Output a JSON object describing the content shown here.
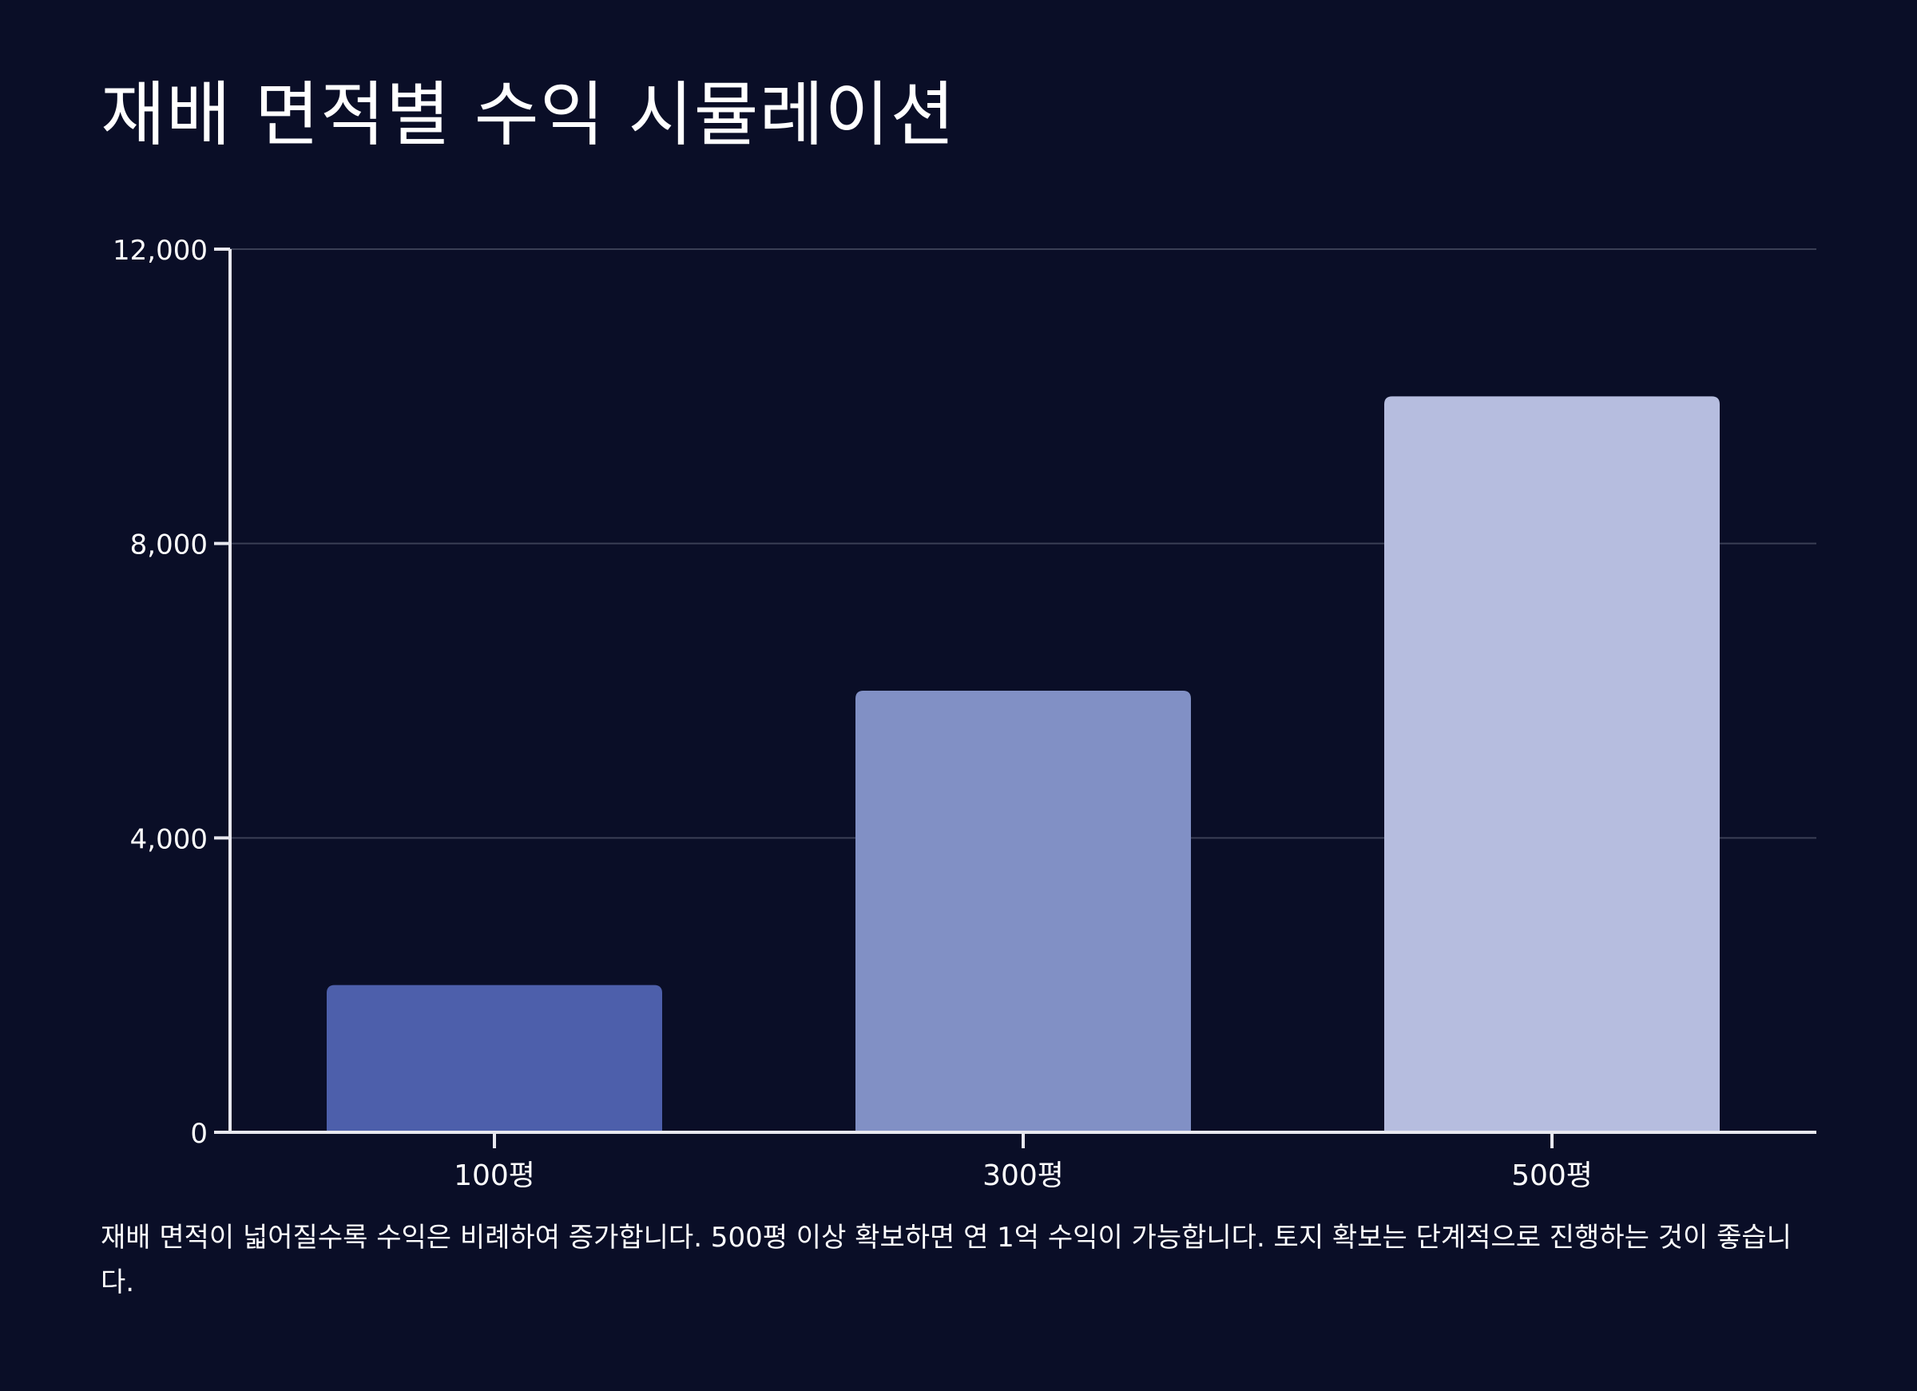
{
  "title": "재배 면적별 수익 시뮬레이션",
  "caption": "재배 면적이 넓어질수록 수익은 비례하여 증가합니다. 500평 이상 확보하면 연 1억 수익이 가능합니다. 토지 확보는 단계적으로 진행하는 것이 좋습니다.",
  "colors": {
    "background": "#0a0e27",
    "axis": "#e8e8ef",
    "grid": "#3a3f55",
    "bars": [
      "#4d5fab",
      "#8190c5",
      "#b6bddf"
    ]
  },
  "chart_data": {
    "type": "bar",
    "categories": [
      "100평",
      "300평",
      "500평"
    ],
    "values": [
      2000,
      6000,
      10000
    ],
    "yticks": [
      0,
      4000,
      8000,
      12000
    ],
    "ytick_labels": [
      "0",
      "4,000",
      "8,000",
      "12,000"
    ],
    "ylim": [
      0,
      12000
    ],
    "grid": true,
    "xlabel": "",
    "ylabel": ""
  }
}
